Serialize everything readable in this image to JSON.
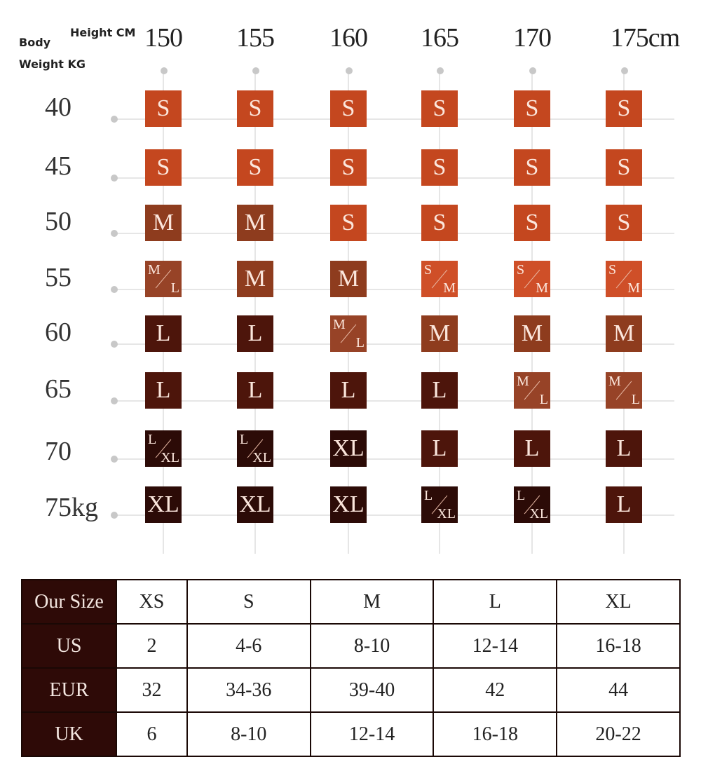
{
  "header": {
    "body": "Body",
    "weight_kg": "Weight  KG",
    "height_cm": "Height CM"
  },
  "heights": [
    "150",
    "155",
    "160",
    "165",
    "170",
    "175cm"
  ],
  "weights": [
    "40",
    "45",
    "50",
    "55",
    "60",
    "65",
    "70",
    "75kg"
  ],
  "colors": {
    "S": "#c4471f",
    "S/M": "#cf4f28",
    "M": "#8e3c1e",
    "M/L": "#974327",
    "L": "#4d150b",
    "L/XL": "#2c0b07",
    "XL": "#2c0b07"
  },
  "grid": [
    [
      "S",
      "S",
      "S",
      "S",
      "S",
      "S"
    ],
    [
      "S",
      "S",
      "S",
      "S",
      "S",
      "S"
    ],
    [
      "M",
      "M",
      "S",
      "S",
      "S",
      "S"
    ],
    [
      "M/L",
      "M",
      "M",
      "S/M",
      "S/M",
      "S/M"
    ],
    [
      "L",
      "L",
      "M/L",
      "M",
      "M",
      "M"
    ],
    [
      "L",
      "L",
      "L",
      "L",
      "M/L",
      "M/L"
    ],
    [
      "L/XL",
      "L/XL",
      "XL",
      "L",
      "L",
      "L"
    ],
    [
      "XL",
      "XL",
      "XL",
      "L/XL",
      "L/XL",
      "L"
    ]
  ],
  "table": {
    "rows": [
      {
        "label": "Our Size",
        "values": [
          "XS",
          "S",
          "M",
          "L",
          "XL"
        ]
      },
      {
        "label": "US",
        "values": [
          "2",
          "4-6",
          "8-10",
          "12-14",
          "16-18"
        ]
      },
      {
        "label": "EUR",
        "values": [
          "32",
          "34-36",
          "39-40",
          "42",
          "44"
        ]
      },
      {
        "label": "UK",
        "values": [
          "6",
          "8-10",
          "12-14",
          "16-18",
          "20-22"
        ]
      }
    ]
  }
}
